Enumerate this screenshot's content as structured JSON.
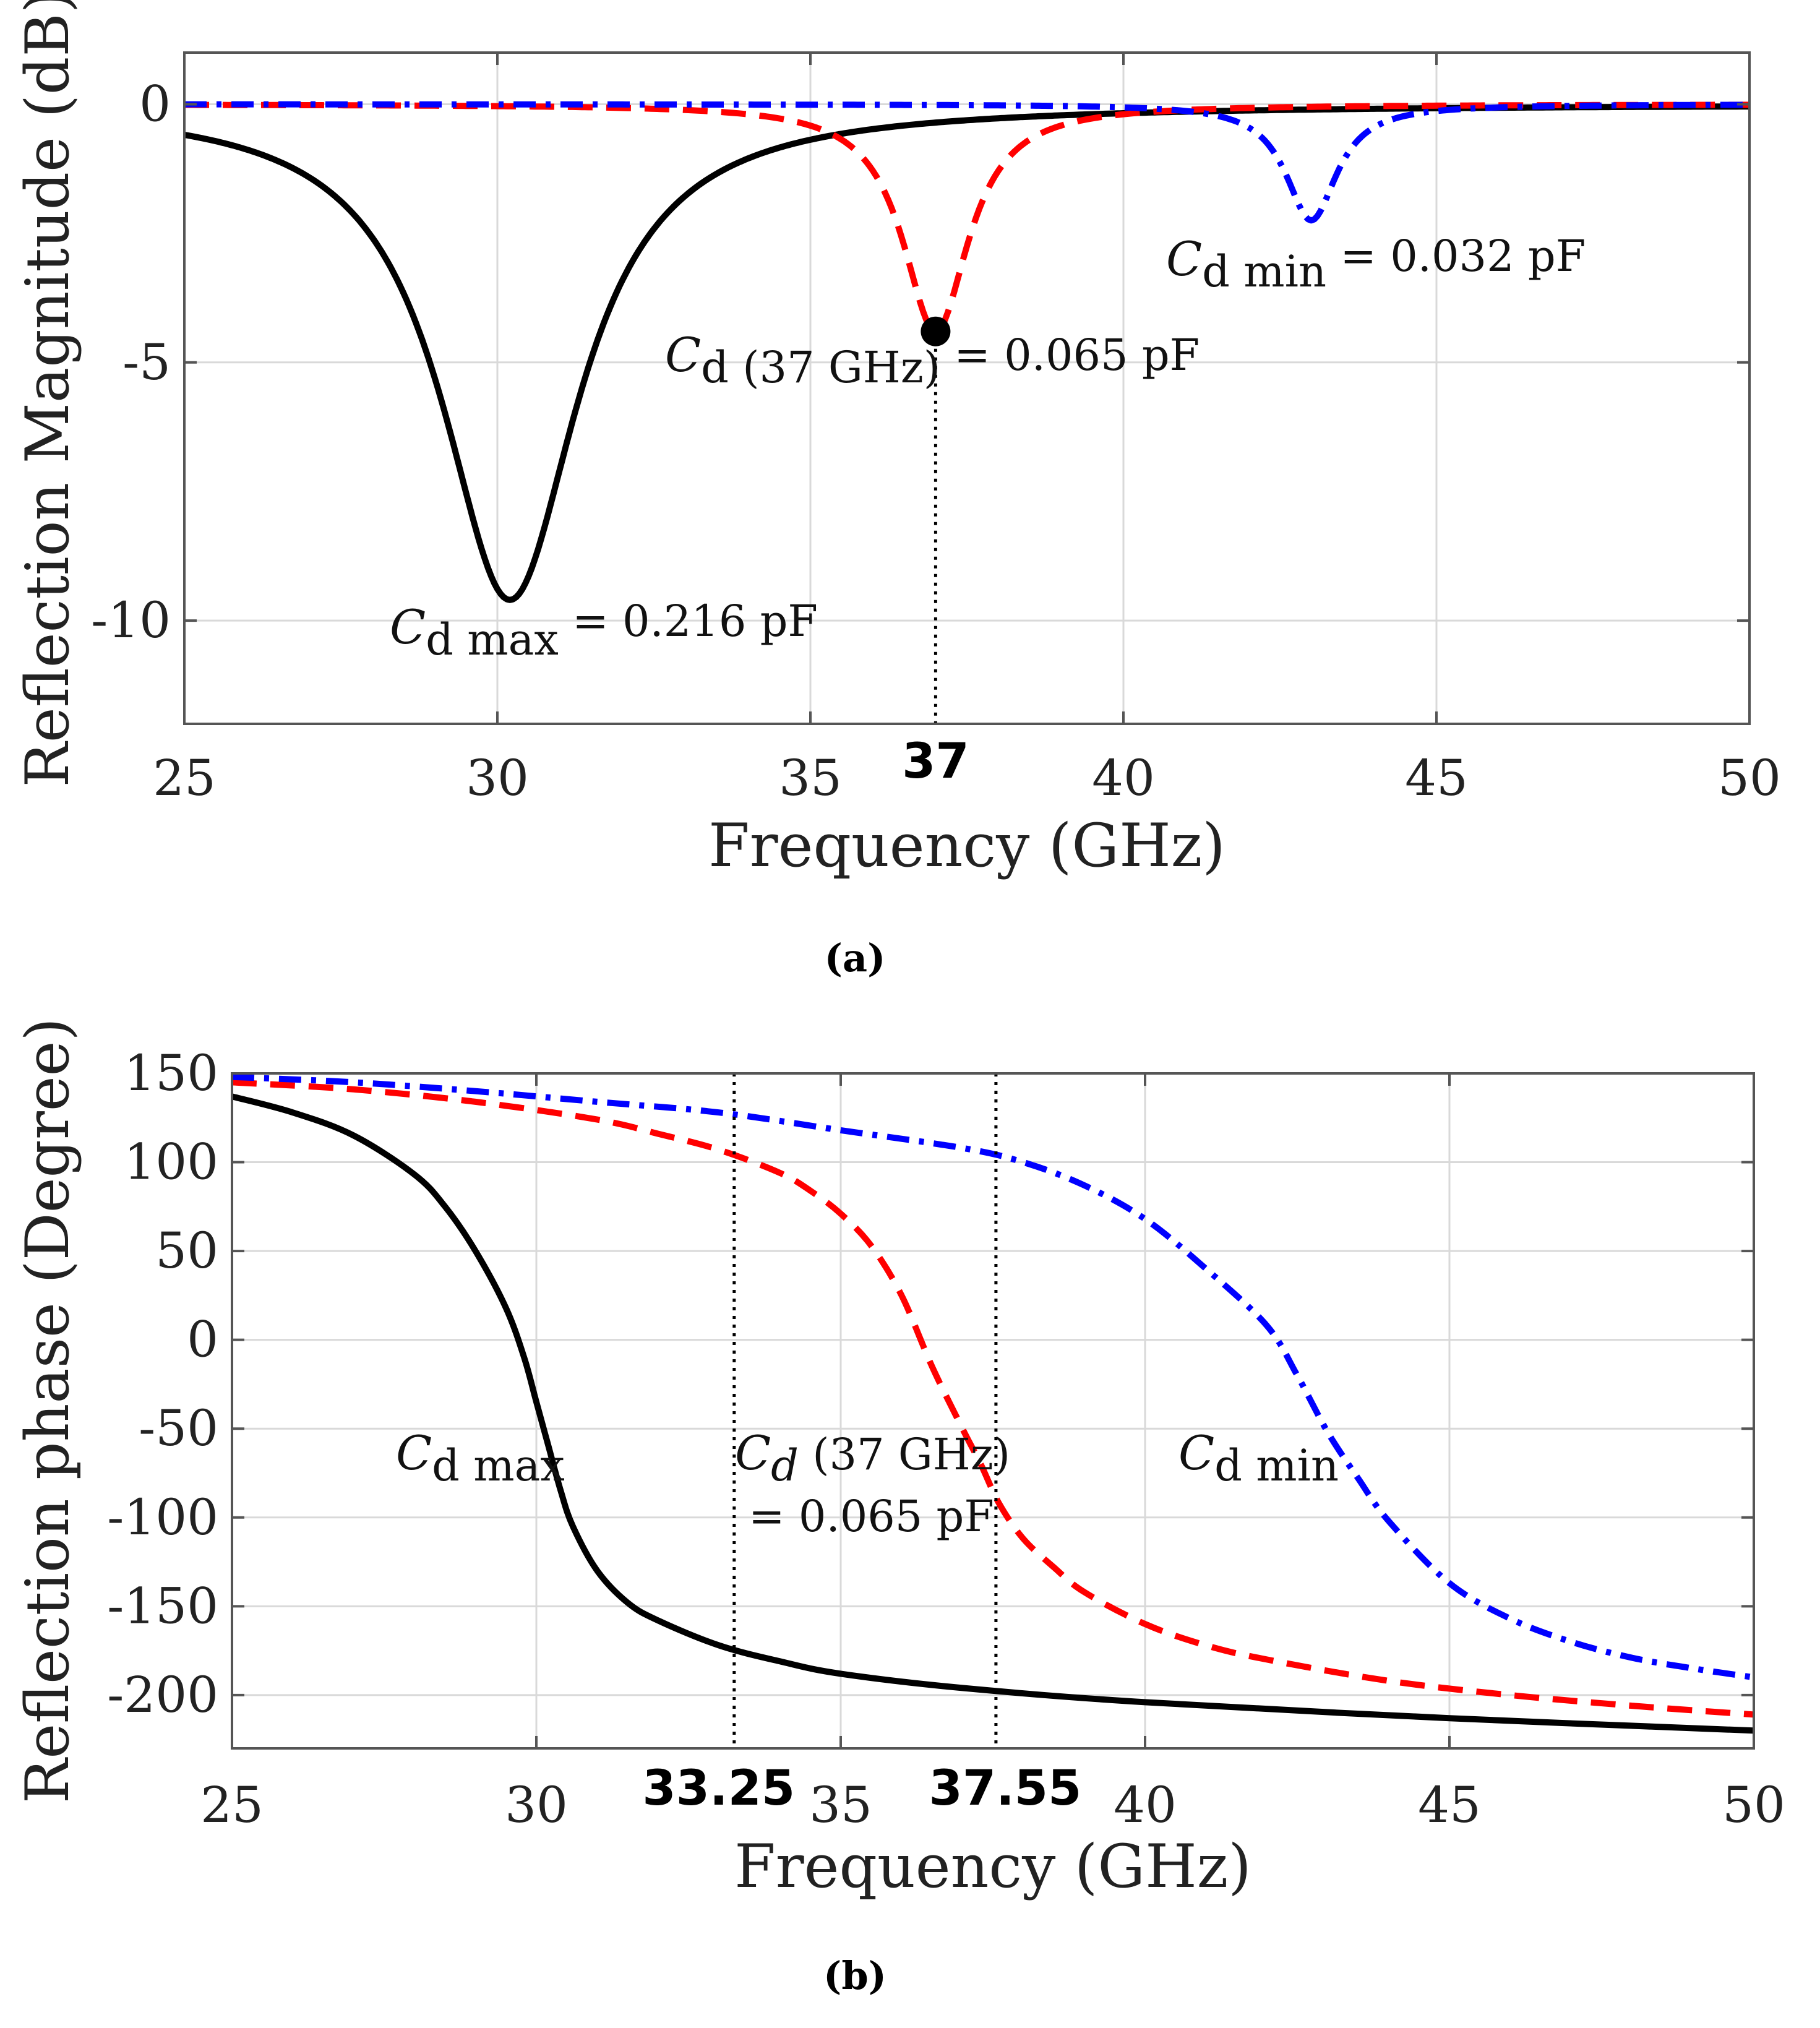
{
  "chart_data": [
    {
      "id": "a",
      "type": "line",
      "caption": "(a)",
      "xlabel": "Frequency (GHz)",
      "ylabel": "Reflection Magnitude (dB)",
      "xlim": [
        25,
        50
      ],
      "ylim": [
        -12,
        1
      ],
      "xticks": [
        25,
        30,
        35,
        40,
        45,
        50
      ],
      "yticks": [
        0,
        -5,
        -10
      ],
      "xtick_labels": [
        "25",
        "30",
        "35",
        "40",
        "45",
        "50"
      ],
      "ytick_labels": [
        "0",
        "-5",
        "-10"
      ],
      "highlight_x": [
        {
          "value": 37,
          "label": "37"
        }
      ],
      "marker": {
        "x": 37,
        "y": -4.4
      },
      "colors": {
        "black": "#000000",
        "red": "#ff0000",
        "blue": "#0000ff"
      },
      "series": [
        {
          "name": "Cd max",
          "color": "#000000",
          "style": "solid",
          "f0": 30.2,
          "depth_db": -9.6,
          "q": 0.75
        },
        {
          "name": "Cd (37 GHz)",
          "color": "#ff0000",
          "style": "dashed",
          "f0": 37.0,
          "depth_db": -4.4,
          "q": 1.55
        },
        {
          "name": "Cd min",
          "color": "#0000ff",
          "style": "dashdot",
          "f0": 43.0,
          "depth_db": -2.25,
          "q": 2.0
        }
      ],
      "annotations": [
        {
          "sym": "C",
          "sub": "d max",
          "rest": " = 0.216 pF"
        },
        {
          "sym": "C",
          "sub": "d (37 GHz)",
          "rest": " = 0.065 pF"
        },
        {
          "sym": "C",
          "sub": "d min",
          "rest": " = 0.032 pF"
        }
      ]
    },
    {
      "id": "b",
      "type": "line",
      "caption": "(b)",
      "xlabel": "Frequency (GHz)",
      "ylabel": "Reflection phase (Degree)",
      "xlim": [
        25,
        50
      ],
      "ylim": [
        -230,
        150
      ],
      "xticks": [
        25,
        30,
        35,
        40,
        45,
        50
      ],
      "yticks": [
        150,
        100,
        50,
        0,
        -50,
        -100,
        -150,
        -200
      ],
      "xtick_labels": [
        "25",
        "30",
        "35",
        "40",
        "45",
        "50"
      ],
      "ytick_labels": [
        "150",
        "100",
        "50",
        "0",
        "-50",
        "-100",
        "-150",
        "-200"
      ],
      "highlight_x": [
        {
          "value": 33.25,
          "label": "33.25"
        },
        {
          "value": 37.55,
          "label": "37.55"
        }
      ],
      "colors": {
        "black": "#000000",
        "red": "#ff0000",
        "blue": "#0000ff"
      },
      "series": [
        {
          "name": "Cd max",
          "color": "#000000",
          "style": "solid",
          "x": [
            25,
            26,
            27,
            28,
            28.5,
            29,
            29.5,
            29.8,
            30.0,
            30.2,
            30.4,
            30.6,
            31.0,
            31.5,
            32,
            33,
            34,
            35,
            37,
            40,
            45,
            50
          ],
          "y": [
            137,
            128,
            115,
            93,
            75,
            50,
            18,
            -10,
            -35,
            -60,
            -85,
            -105,
            -130,
            -148,
            -158,
            -172,
            -181,
            -188,
            -196,
            -204,
            -213,
            -220
          ]
        },
        {
          "name": "Cd (37 GHz)",
          "color": "#ff0000",
          "style": "dashed",
          "x": [
            25,
            27,
            29,
            31,
            32,
            33,
            34,
            34.5,
            35,
            35.5,
            36,
            36.5,
            37.0,
            37.3,
            37.6,
            38,
            38.5,
            39,
            40,
            41,
            42,
            44,
            46,
            48,
            50
          ],
          "y": [
            145,
            141,
            134,
            124,
            116,
            107,
            94,
            84,
            71,
            53,
            25,
            -15,
            -50,
            -70,
            -92,
            -112,
            -128,
            -142,
            -160,
            -172,
            -180,
            -192,
            -200,
            -206,
            -211
          ]
        },
        {
          "name": "Cd min",
          "color": "#0000ff",
          "style": "dashdot",
          "x": [
            25,
            27,
            29,
            31,
            33,
            35,
            37,
            38,
            39,
            40,
            41,
            42,
            42.5,
            43,
            43.5,
            44,
            45,
            46,
            47,
            48,
            49,
            50
          ],
          "y": [
            148,
            145,
            140,
            134,
            128,
            118,
            108,
            100,
            87,
            68,
            40,
            8,
            -20,
            -52,
            -78,
            -102,
            -137,
            -157,
            -170,
            -179,
            -185,
            -190
          ]
        }
      ],
      "annotations": [
        {
          "sym": "C",
          "sub": "d max",
          "rest": ""
        },
        {
          "sym": "C",
          "sub": "d",
          "sub2": " (37 GHz)",
          "rest": "= 0.065 pF"
        },
        {
          "sym": "C",
          "sub": "d min",
          "rest": ""
        }
      ]
    }
  ]
}
